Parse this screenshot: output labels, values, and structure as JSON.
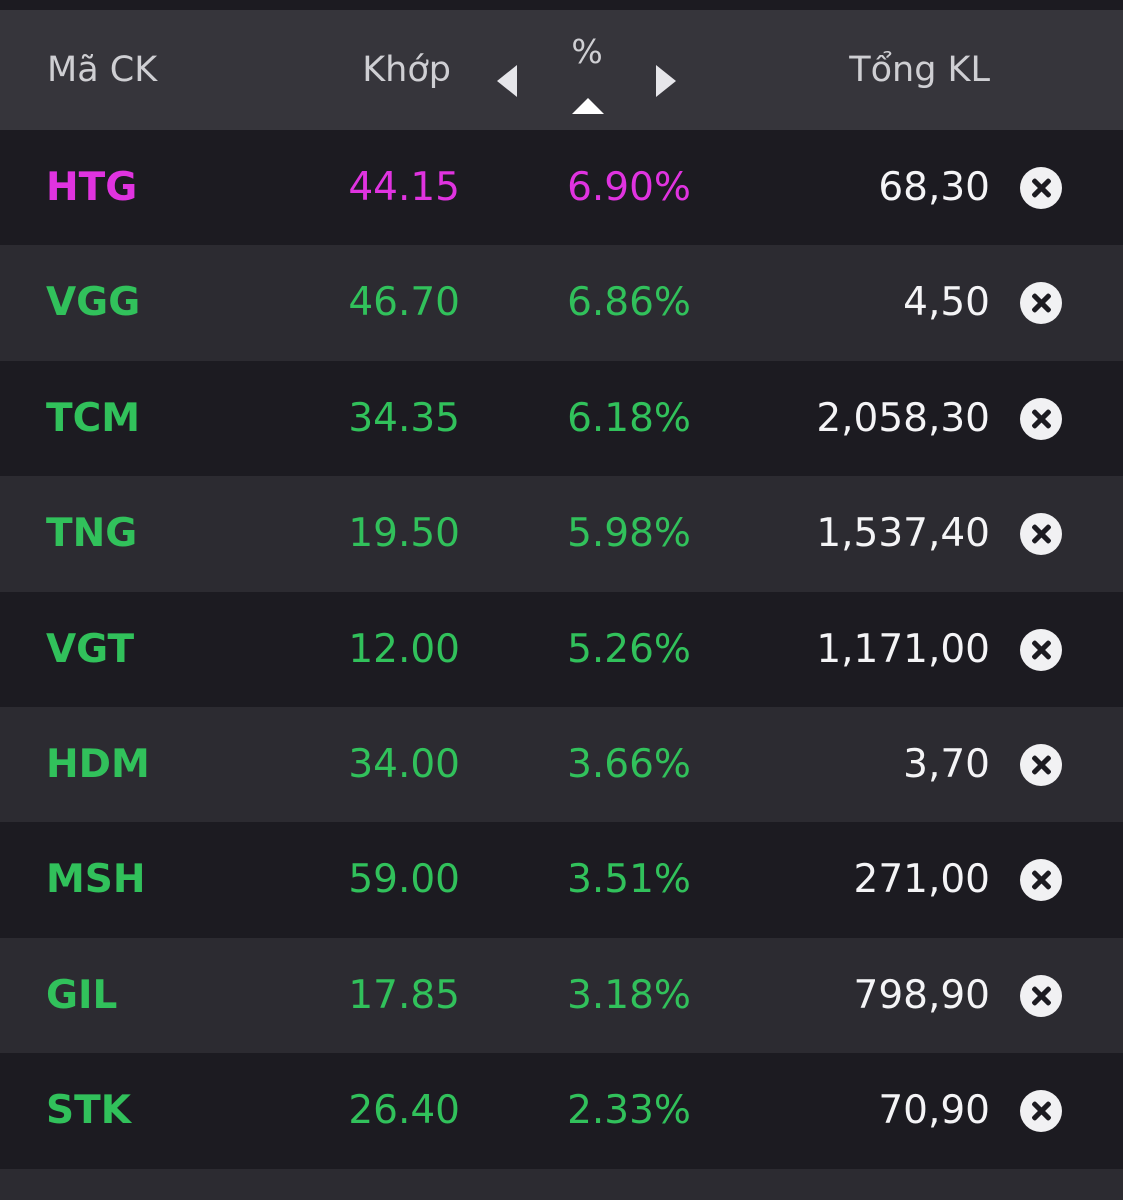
{
  "colors": {
    "up": "#31c15b",
    "ceiling": "#e033e0",
    "header_bg": "#36353b",
    "row_dark": "#1c1b21",
    "row_light": "#2c2b31"
  },
  "header": {
    "code_label": "Mã CK",
    "price_label": "Khớp",
    "pct_label": "%",
    "total_label": "Tổng KL",
    "sort": "descending-by-percent"
  },
  "rows": [
    {
      "code": "HTG",
      "price": "44.15",
      "pct": "6.90%",
      "total": "68,30",
      "status": "ceiling"
    },
    {
      "code": "VGG",
      "price": "46.70",
      "pct": "6.86%",
      "total": "4,50",
      "status": "up"
    },
    {
      "code": "TCM",
      "price": "34.35",
      "pct": "6.18%",
      "total": "2,058,30",
      "status": "up"
    },
    {
      "code": "TNG",
      "price": "19.50",
      "pct": "5.98%",
      "total": "1,537,40",
      "status": "up"
    },
    {
      "code": "VGT",
      "price": "12.00",
      "pct": "5.26%",
      "total": "1,171,00",
      "status": "up"
    },
    {
      "code": "HDM",
      "price": "34.00",
      "pct": "3.66%",
      "total": "3,70",
      "status": "up"
    },
    {
      "code": "MSH",
      "price": "59.00",
      "pct": "3.51%",
      "total": "271,00",
      "status": "up"
    },
    {
      "code": "GIL",
      "price": "17.85",
      "pct": "3.18%",
      "total": "798,90",
      "status": "up"
    },
    {
      "code": "STK",
      "price": "26.40",
      "pct": "2.33%",
      "total": "70,90",
      "status": "up"
    }
  ]
}
